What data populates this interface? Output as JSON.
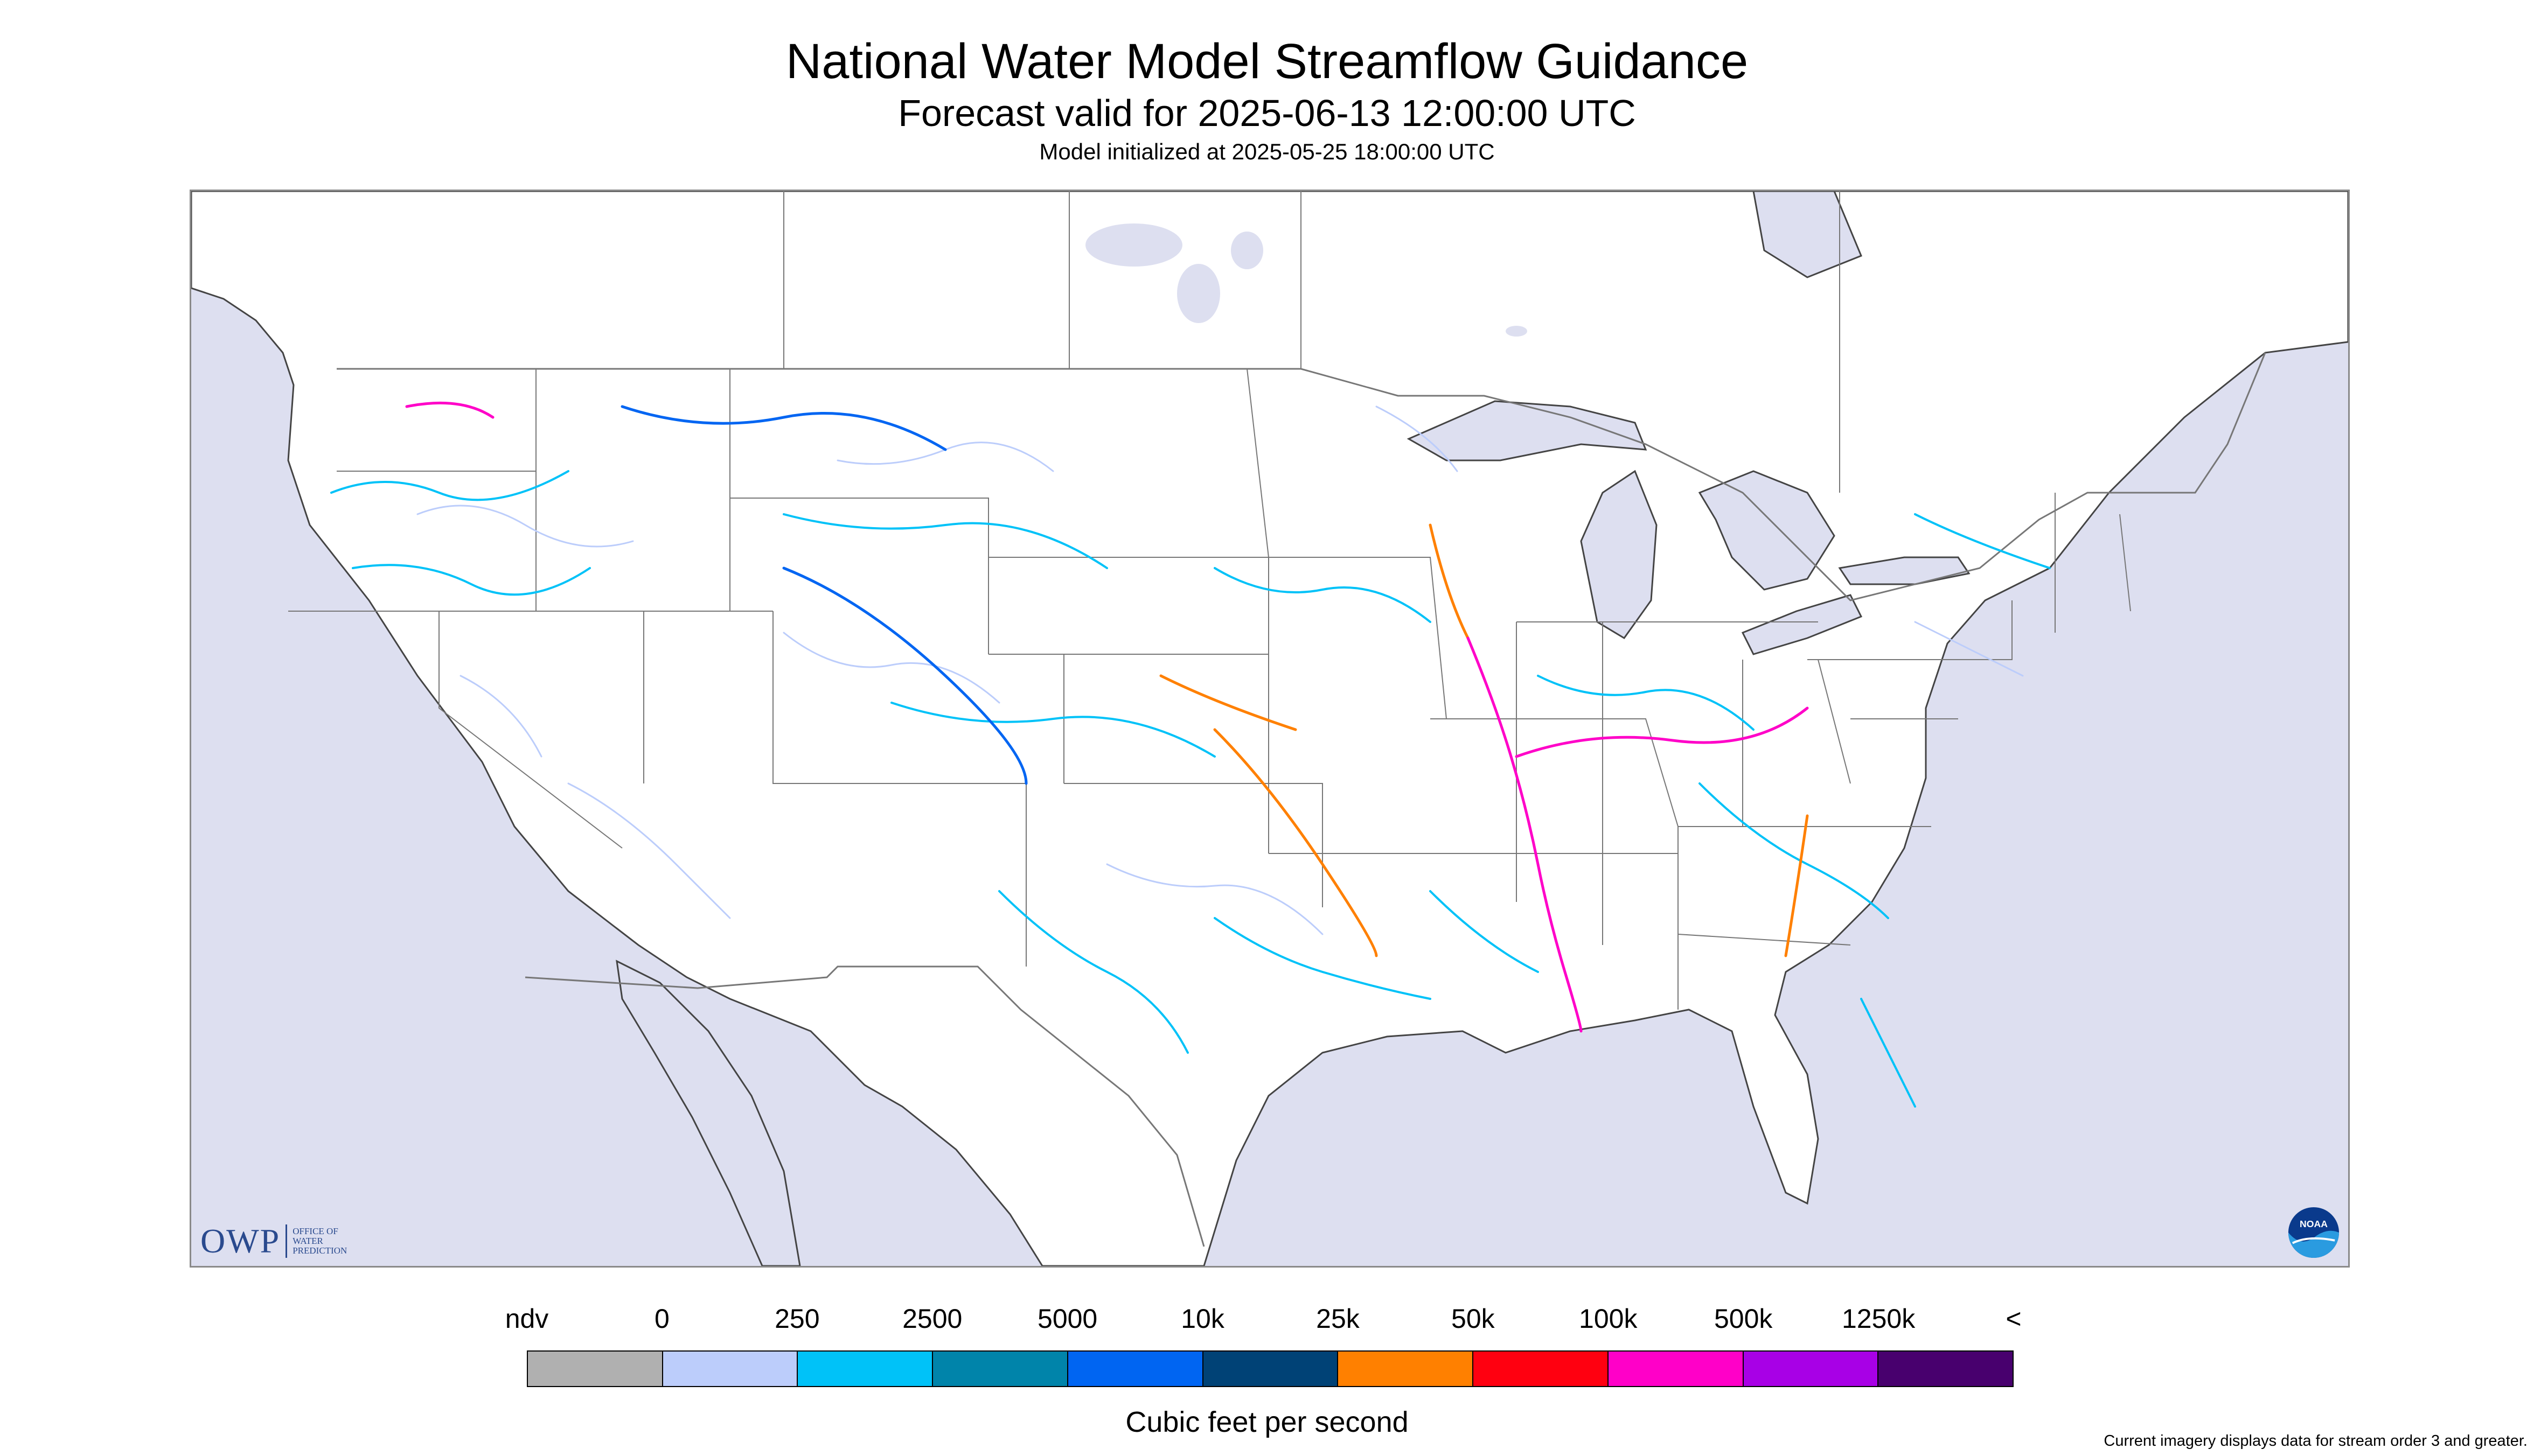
{
  "header": {
    "title": "National Water Model Streamflow Guidance",
    "subtitle": "Forecast valid for 2025-06-13 12:00:00 UTC",
    "initialized": "Model initialized at 2025-05-25 18:00:00 UTC"
  },
  "logos": {
    "owp_mark": "OWP",
    "owp_name_line1": "OFFICE OF",
    "owp_name_line2": "WATER",
    "owp_name_line3": "PREDICTION",
    "noaa": "NOAA"
  },
  "legend": {
    "tick_labels": [
      "ndv",
      "0",
      "250",
      "2500",
      "5000",
      "10k",
      "25k",
      "50k",
      "100k",
      "500k",
      "1250k",
      "<"
    ],
    "colors": [
      "#b0b0b0",
      "#bccdfb",
      "#00c2f8",
      "#0084aa",
      "#0065f2",
      "#004276",
      "#ff8000",
      "#ff0010",
      "#ff00c8",
      "#a800e6",
      "#48006e"
    ],
    "units": "Cubic feet per second"
  },
  "footer": {
    "note": "Current imagery displays data for stream order 3 and greater."
  },
  "map": {
    "ocean_color": "#dddff0",
    "land_color": "#ffffff",
    "border_color": "#777777"
  }
}
